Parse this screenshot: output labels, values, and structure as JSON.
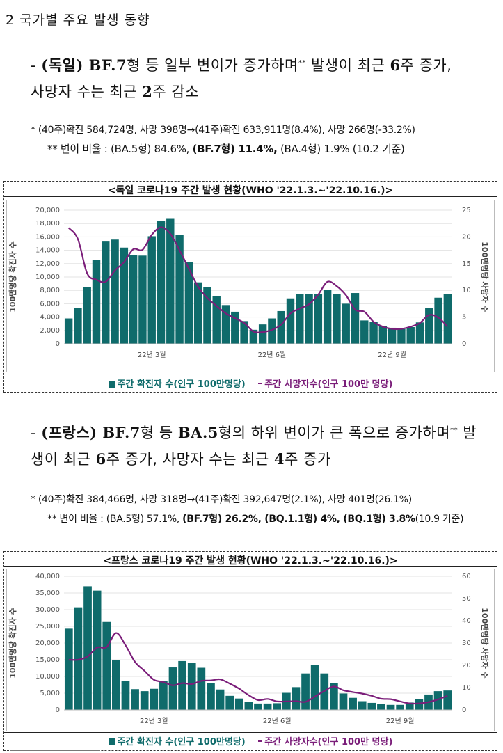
{
  "section_title": "2 국가별 주요 발생 동향",
  "germany": {
    "headline_dash": "- ",
    "headline_country": "(독일) ",
    "headline_variant": "BF.7",
    "headline_text1": "형 등 일부 변이가 증가하며",
    "headline_star": "**",
    "headline_text2": " 발생이 최근 ",
    "headline_weeks": "6",
    "headline_text3": "주 증가,",
    "headline_line2a": "사망자 수는 최근 ",
    "headline_line2num": "2",
    "headline_line2b": "주 감소",
    "note1": "* (40주)확진 584,724명, 사망 398명→(41주)확진 633,911명(8.4%), 사망 266명(-33.2%)",
    "note2_pre": "** 변이 비율 : (BA.5형) 84.6%, ",
    "note2_bold": "(BF.7형) 11.4%,",
    "note2_post": " (BA.4형) 1.9% (10.2 기준)",
    "chart_title": "<독일 코로나19 주간 발생 현황(WHO '22.1.3.~'22.10.16.)>",
    "legend_cases": "주간 확진자 수(인구 100만명당)",
    "legend_deaths": "주간 사망자수(인구 100만 명당)"
  },
  "france": {
    "headline_dash": "- ",
    "headline_country": "(프랑스) ",
    "headline_variant": "BF.7",
    "headline_text1": "형 등 ",
    "headline_variant2": "BA.5",
    "headline_text2": "형의 하위 변이가 큰 폭으로 증가하며",
    "headline_star": "**",
    "headline_text3": " 발",
    "headline_line2a": "생이 최근 ",
    "headline_line2num": "6",
    "headline_line2b": "주 증가, 사망자 수는 최근 ",
    "headline_line2num2": "4",
    "headline_line2c": "주 증가",
    "note1": "* (40주)확진 384,466명, 사망 318명→(41주)확진 392,647명(2.1%), 사망 401명(26.1%)",
    "note2_pre": "** 변이 비율 : (BA.5형) 57.1%, ",
    "note2_bold": "(BF.7형) 26.2%, (BQ.1.1형) 4%, (BQ.1형) 3.8%",
    "note2_post": "(10.9 기준)",
    "chart_title": "<프랑스 코로나19 주간 발생 현황(WHO '22.1.3.~'22.10.16.)>",
    "legend_cases": "주간 확진자 수(인구 100만명당)",
    "legend_deaths": "주간 사망자수(인구 100만 명당)"
  },
  "colors": {
    "bar": "#0f6b6b",
    "line": "#7b1e7a"
  },
  "chart_data": [
    {
      "type": "bar",
      "title": "<독일 코로나19 주간 발생 현황(WHO '22.1.3.~'22.10.16.)>",
      "ylabel": "100만명당 확진자 수",
      "y2label": "100만명당 사망자 수",
      "ylim": [
        0,
        20000
      ],
      "y2lim": [
        0,
        25
      ],
      "yticks": [
        "20,000",
        "18,000",
        "16,000",
        "14,000",
        "12,000",
        "10,000",
        "8,000",
        "6,000",
        "4,000",
        "2,000",
        "0"
      ],
      "y2ticks": [
        "25",
        "20",
        "15",
        "10",
        "5",
        "0"
      ],
      "xtick_labels": [
        {
          "label": "22년 3월",
          "index": 9
        },
        {
          "label": "22년 6월",
          "index": 22
        },
        {
          "label": "22년 9월",
          "index": 35
        }
      ],
      "series": [
        {
          "name": "주간 확진자 수(인구 100만명당)",
          "kind": "bar",
          "values": [
            3800,
            5400,
            8500,
            12600,
            15300,
            15600,
            14400,
            13300,
            13200,
            16100,
            18400,
            18800,
            16300,
            12200,
            9200,
            8500,
            7100,
            5800,
            4800,
            3400,
            2100,
            2900,
            3800,
            4900,
            6800,
            7400,
            7400,
            7400,
            8100,
            7400,
            6000,
            7600,
            3500,
            3300,
            2700,
            2400,
            2200,
            2500,
            3200,
            5400,
            6900,
            7500
          ]
        },
        {
          "name": "주간 사망자수(인구 100만 명당)",
          "kind": "line",
          "axis": "right",
          "values": [
            21.7,
            19.6,
            13.2,
            12.0,
            11.6,
            13.7,
            15.3,
            17.7,
            17.6,
            20.4,
            21.8,
            20.6,
            17.5,
            14.1,
            10.7,
            8.6,
            7.1,
            5.7,
            4.8,
            3.9,
            2.3,
            2.2,
            2.6,
            3.6,
            5.7,
            6.6,
            7.4,
            9.2,
            11.6,
            10.8,
            9.1,
            6.4,
            6.0,
            4.1,
            3.2,
            2.8,
            2.8,
            3.2,
            3.9,
            5.4,
            4.9,
            3.2
          ]
        }
      ]
    },
    {
      "type": "bar",
      "title": "<프랑스 코로나19 주간 발생 현황(WHO '22.1.3.~'22.10.16.)>",
      "ylabel": "100만명당 확진자 수",
      "y2label": "100만명당 사망자 수",
      "ylim": [
        0,
        40000
      ],
      "y2lim": [
        0,
        60
      ],
      "yticks": [
        "40,000",
        "35,000",
        "30,000",
        "25,000",
        "20,000",
        "15,000",
        "10,000",
        "5,000",
        "0"
      ],
      "y2ticks": [
        "60",
        "50",
        "40",
        "30",
        "20",
        "10",
        "0"
      ],
      "xtick_labels": [
        {
          "label": "22년 3월",
          "index": 9
        },
        {
          "label": "22년 6월",
          "index": 22
        },
        {
          "label": "22년 9월",
          "index": 35
        }
      ],
      "series": [
        {
          "name": "주간 확진자 수(인구 100만명당)",
          "kind": "bar",
          "values": [
            24300,
            30700,
            37000,
            35700,
            26300,
            14900,
            8700,
            6200,
            5600,
            6300,
            8600,
            12700,
            14600,
            14000,
            12600,
            8000,
            6100,
            4200,
            3400,
            2500,
            1900,
            1900,
            2000,
            5100,
            6800,
            10900,
            13500,
            10900,
            8000,
            4900,
            3600,
            2600,
            2100,
            1800,
            1500,
            1500,
            2200,
            3300,
            4600,
            5600,
            5800
          ]
        },
        {
          "name": "주간 사망자수(인구 100만 명당)",
          "kind": "line",
          "axis": "right",
          "values": [
            22.5,
            22.5,
            24.0,
            28.0,
            28.2,
            34.5,
            29.0,
            21.5,
            17.5,
            13.5,
            12.5,
            11.0,
            12.0,
            11.6,
            13.0,
            13.2,
            13.7,
            11.8,
            9.5,
            6.6,
            4.4,
            4.9,
            3.8,
            3.8,
            3.9,
            3.6,
            6.0,
            8.5,
            10.5,
            8.8,
            8.0,
            7.3,
            6.3,
            5.0,
            4.8,
            3.8,
            2.9,
            2.9,
            3.5,
            4.7,
            6.3
          ]
        }
      ]
    }
  ]
}
